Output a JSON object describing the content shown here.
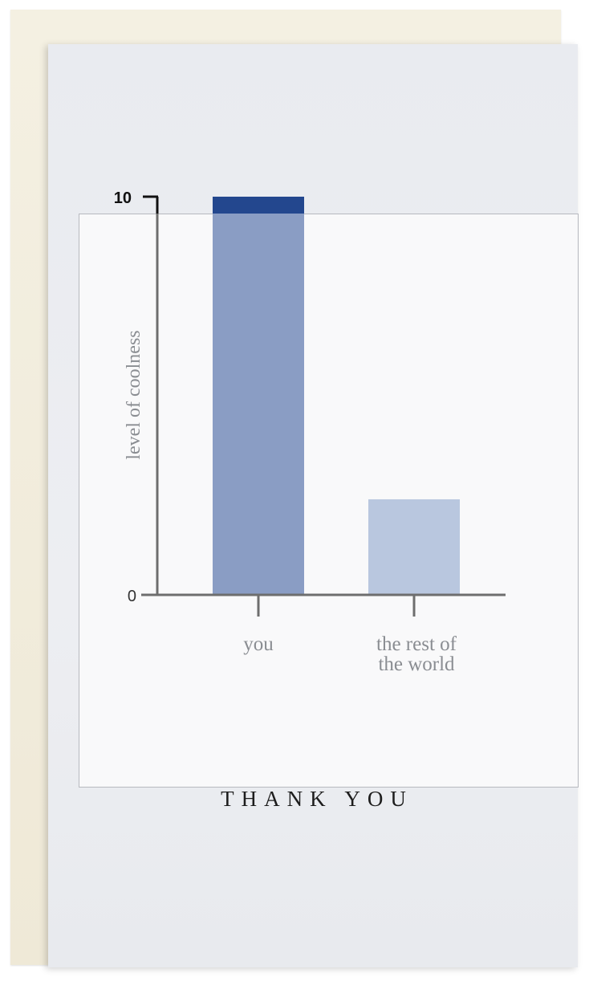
{
  "card": {
    "message": "THANK YOU"
  },
  "colors": {
    "envelope": "#f2eedf",
    "card": "#eaecf0",
    "bar_you": "#8a9dc4",
    "bar_you_top": "#23478e",
    "bar_rest": "#b9c7df",
    "axis": "#6e6e6e"
  },
  "chart_data": {
    "type": "bar",
    "categories": [
      "you",
      "the rest of the world"
    ],
    "category_lines": [
      [
        "you"
      ],
      [
        "the rest of",
        "the world"
      ]
    ],
    "values": [
      10,
      2.4
    ],
    "ylabel": "level of coolness",
    "xlabel": "",
    "ylim": [
      0,
      10
    ],
    "yticks": [
      "0",
      "10"
    ],
    "grid": false
  }
}
